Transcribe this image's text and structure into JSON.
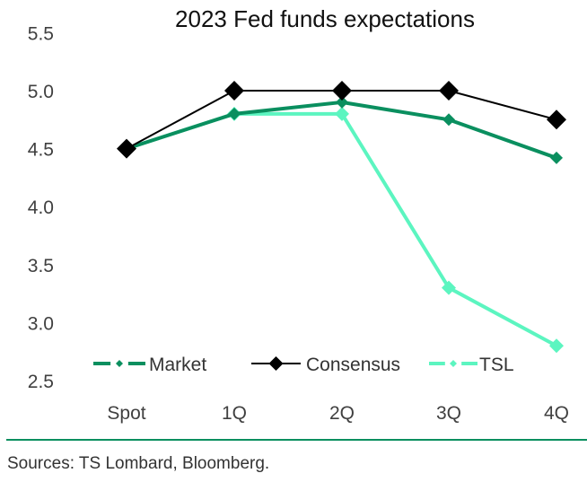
{
  "chart_data": {
    "type": "line",
    "title": "2023 Fed funds expectations",
    "xlabel": "",
    "ylabel": "",
    "categories": [
      "Spot",
      "1Q",
      "2Q",
      "3Q",
      "4Q"
    ],
    "ylim": [
      2.5,
      5.5
    ],
    "yticks": [
      "5.5",
      "5.0",
      "4.5",
      "4.0",
      "3.5",
      "3.0",
      "2.5"
    ],
    "ytick_values": [
      5.5,
      5.0,
      4.5,
      4.0,
      3.5,
      3.0,
      2.5
    ],
    "grid": false,
    "legend_position": "bottom",
    "series": [
      {
        "name": "Market",
        "color": "#0a8f5f",
        "style": "dash-dot",
        "marker": "small-diamond",
        "values": [
          4.5,
          4.8,
          4.9,
          4.75,
          4.42
        ]
      },
      {
        "name": "Consensus",
        "color": "#000000",
        "style": "solid",
        "marker": "diamond",
        "values": [
          4.5,
          5.0,
          5.0,
          5.0,
          4.75
        ]
      },
      {
        "name": "TSL",
        "color": "#5cf5c0",
        "style": "dash-dot",
        "marker": "diamond",
        "values": [
          4.5,
          4.8,
          4.8,
          3.3,
          2.8
        ]
      }
    ]
  },
  "footer": {
    "source": "Sources: TS Lombard, Bloomberg."
  }
}
